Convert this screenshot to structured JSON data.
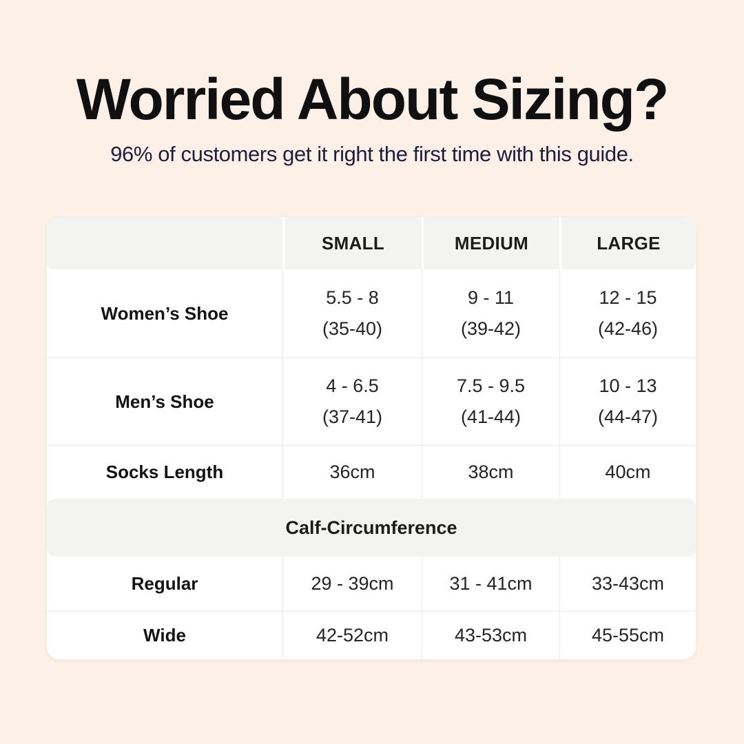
{
  "colors": {
    "page_background": "#fdf0e6",
    "card_background": "#ffffff",
    "band_grey": "#f3f3f1",
    "divider_grey": "#e9e9e9",
    "title_text": "#101010",
    "subtitle_navy": "#1e1e3e",
    "cell_text": "#242424"
  },
  "header": {
    "title": "Worried About Sizing?",
    "subtitle": "96% of customers get it right the first time with this guide."
  },
  "table": {
    "column_headers": [
      "SMALL",
      "MEDIUM",
      "LARGE"
    ],
    "shoe_rows": [
      {
        "label": "Women’s Shoe",
        "cells": [
          {
            "range": "5.5 - 8",
            "eu": "(35-40)"
          },
          {
            "range": "9 - 11",
            "eu": "(39-42)"
          },
          {
            "range": "12 - 15",
            "eu": "(42-46)"
          }
        ]
      },
      {
        "label": "Men’s Shoe",
        "cells": [
          {
            "range": "4 - 6.5",
            "eu": "(37-41)"
          },
          {
            "range": "7.5 - 9.5",
            "eu": "(41-44)"
          },
          {
            "range": "10 - 13",
            "eu": "(44-47)"
          }
        ]
      }
    ],
    "socks_row": {
      "label": "Socks Length",
      "cells": [
        "36cm",
        "38cm",
        "40cm"
      ]
    },
    "section_header": "Calf-Circumference",
    "calf_rows": [
      {
        "label": "Regular",
        "cells": [
          "29 - 39cm",
          "31 - 41cm",
          "33-43cm"
        ]
      },
      {
        "label": "Wide",
        "cells": [
          "42-52cm",
          "43-53cm",
          "45-55cm"
        ]
      }
    ]
  },
  "chart_data": {
    "type": "table",
    "title": "Worried About Sizing?",
    "subtitle": "96% of customers get it right the first time with this guide.",
    "columns": [
      "",
      "SMALL",
      "MEDIUM",
      "LARGE"
    ],
    "rows": [
      [
        "Women’s Shoe",
        "5.5 - 8 (35-40)",
        "9 - 11 (39-42)",
        "12 - 15 (42-46)"
      ],
      [
        "Men’s Shoe",
        "4 - 6.5 (37-41)",
        "7.5 - 9.5 (41-44)",
        "10 - 13 (44-47)"
      ],
      [
        "Socks Length",
        "36cm",
        "38cm",
        "40cm"
      ],
      [
        "Calf-Circumference",
        "",
        "",
        ""
      ],
      [
        "Regular",
        "29 - 39cm",
        "31 - 41cm",
        "33-43cm"
      ],
      [
        "Wide",
        "42-52cm",
        "43-53cm",
        "45-55cm"
      ]
    ]
  }
}
